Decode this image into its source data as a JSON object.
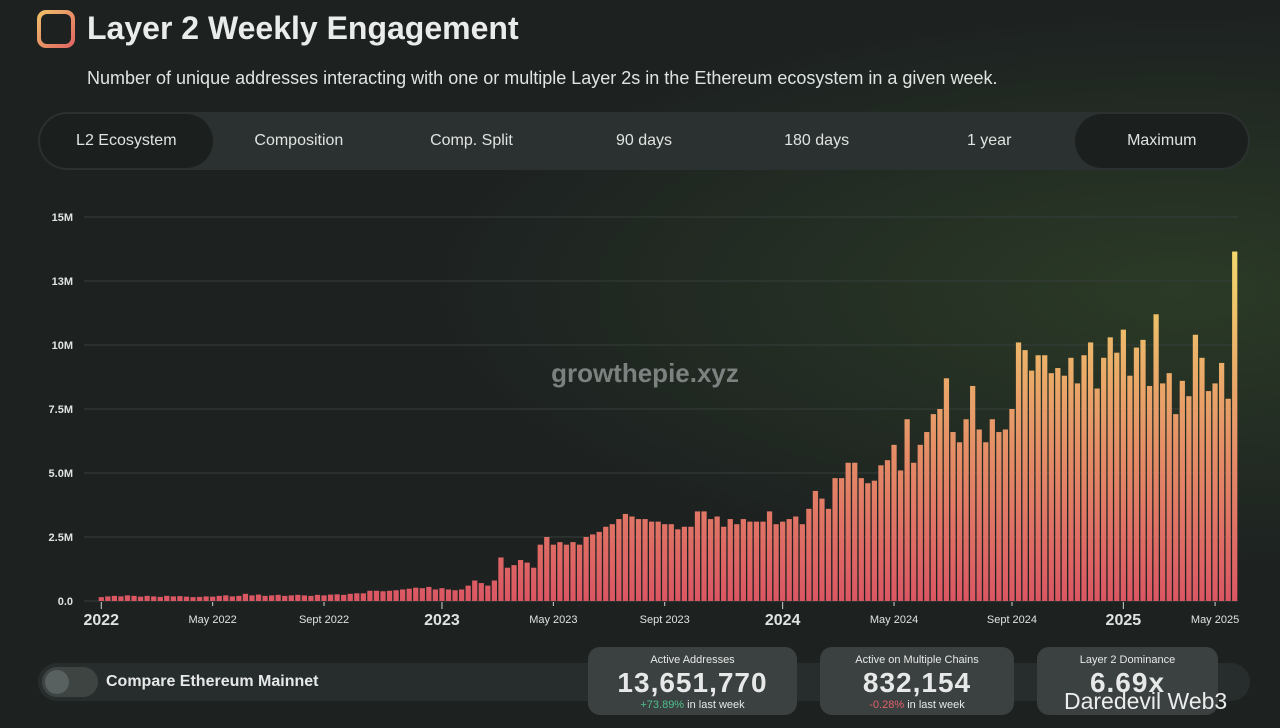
{
  "header": {
    "title": "Layer 2 Weekly Engagement",
    "subtitle": "Number of unique addresses interacting with one or multiple Layer 2s in the Ethereum ecosystem in a given week."
  },
  "tabs": [
    "L2 Ecosystem",
    "Composition",
    "Comp. Split",
    "90 days",
    "180 days",
    "1 year",
    "Maximum"
  ],
  "watermark": "growthepie.xyz",
  "chart_data": {
    "type": "bar",
    "gradient": [
      "#f3d96c",
      "#db5663"
    ],
    "grid": true,
    "ylim": [
      0,
      15
    ],
    "yticks": [
      {
        "value": 0,
        "label": "0.0"
      },
      {
        "value": 2.5,
        "label": "2.5M"
      },
      {
        "value": 5,
        "label": "5.0M"
      },
      {
        "value": 7.5,
        "label": "7.5M"
      },
      {
        "value": 10,
        "label": "10M"
      },
      {
        "value": 12.5,
        "label": "13M"
      },
      {
        "value": 15,
        "label": "15M"
      }
    ],
    "categories": [
      "2022",
      null,
      null,
      null,
      null,
      null,
      null,
      null,
      null,
      null,
      null,
      null,
      null,
      null,
      null,
      null,
      null,
      "May 2022",
      null,
      null,
      null,
      null,
      null,
      null,
      null,
      null,
      null,
      null,
      null,
      null,
      null,
      null,
      null,
      null,
      "Sept 2022",
      null,
      null,
      null,
      null,
      null,
      null,
      null,
      null,
      null,
      null,
      null,
      null,
      null,
      null,
      null,
      null,
      null,
      "2023",
      null,
      null,
      null,
      null,
      null,
      null,
      null,
      null,
      null,
      null,
      null,
      null,
      null,
      null,
      null,
      null,
      "May 2023",
      null,
      null,
      null,
      null,
      null,
      null,
      null,
      null,
      null,
      null,
      null,
      null,
      null,
      null,
      null,
      null,
      "Sept 2023",
      null,
      null,
      null,
      null,
      null,
      null,
      null,
      null,
      null,
      null,
      null,
      null,
      null,
      null,
      null,
      null,
      null,
      "2024",
      null,
      null,
      null,
      null,
      null,
      null,
      null,
      null,
      null,
      null,
      null,
      null,
      null,
      null,
      null,
      null,
      "May 2024",
      null,
      null,
      null,
      null,
      null,
      null,
      null,
      null,
      null,
      null,
      null,
      null,
      null,
      null,
      null,
      null,
      null,
      "Sept 2024",
      null,
      null,
      null,
      null,
      null,
      null,
      null,
      null,
      null,
      null,
      null,
      null,
      null,
      null,
      null,
      null,
      "2025",
      null,
      null,
      null,
      null,
      null,
      null,
      null,
      null,
      null,
      null,
      null,
      null,
      null,
      "May 2025",
      null,
      null,
      null
    ],
    "values": [
      0.15,
      0.18,
      0.2,
      0.18,
      0.22,
      0.2,
      0.17,
      0.2,
      0.18,
      0.16,
      0.2,
      0.18,
      0.19,
      0.17,
      0.15,
      0.16,
      0.18,
      0.17,
      0.2,
      0.22,
      0.18,
      0.2,
      0.28,
      0.22,
      0.25,
      0.2,
      0.22,
      0.24,
      0.2,
      0.22,
      0.24,
      0.22,
      0.2,
      0.24,
      0.22,
      0.25,
      0.26,
      0.24,
      0.28,
      0.3,
      0.3,
      0.4,
      0.4,
      0.38,
      0.4,
      0.42,
      0.45,
      0.48,
      0.52,
      0.5,
      0.55,
      0.45,
      0.5,
      0.45,
      0.42,
      0.45,
      0.6,
      0.8,
      0.7,
      0.6,
      0.8,
      1.7,
      1.3,
      1.4,
      1.6,
      1.5,
      1.3,
      2.2,
      2.5,
      2.2,
      2.3,
      2.2,
      2.3,
      2.2,
      2.5,
      2.6,
      2.7,
      2.9,
      3.0,
      3.2,
      3.4,
      3.3,
      3.2,
      3.2,
      3.1,
      3.1,
      3.0,
      3.0,
      2.8,
      2.9,
      2.9,
      3.5,
      3.5,
      3.2,
      3.3,
      2.9,
      3.2,
      3.0,
      3.2,
      3.1,
      3.1,
      3.1,
      3.5,
      3.0,
      3.1,
      3.2,
      3.3,
      3.0,
      3.6,
      4.3,
      4.0,
      3.6,
      4.8,
      4.8,
      5.4,
      5.4,
      4.8,
      4.6,
      4.7,
      5.3,
      5.5,
      6.1,
      5.1,
      7.1,
      5.4,
      6.1,
      6.6,
      7.3,
      7.5,
      8.7,
      6.6,
      6.2,
      7.1,
      8.4,
      6.7,
      6.2,
      7.1,
      6.6,
      6.7,
      7.5,
      10.1,
      9.8,
      9.0,
      9.6,
      9.6,
      8.9,
      9.1,
      8.8,
      9.5,
      8.5,
      9.6,
      10.1,
      8.3,
      9.5,
      10.3,
      9.7,
      10.6,
      8.8,
      9.9,
      10.2,
      8.4,
      11.2,
      8.5,
      8.9,
      7.3,
      8.6,
      8.0,
      10.4,
      9.5,
      8.2,
      8.5,
      9.3,
      7.9,
      13.65
    ]
  },
  "toggle": {
    "label": "Compare Ethereum Mainnet"
  },
  "stats": [
    {
      "label": "Active Addresses",
      "value": "13,651,770",
      "change": "+73.89%",
      "note": "in last week"
    },
    {
      "label": "Active on Multiple Chains",
      "value": "832,154",
      "change": "-0.28%",
      "note": "in last week"
    },
    {
      "label": "Layer 2 Dominance",
      "value": "6.69x"
    }
  ],
  "overlay": "Daredevil Web3"
}
